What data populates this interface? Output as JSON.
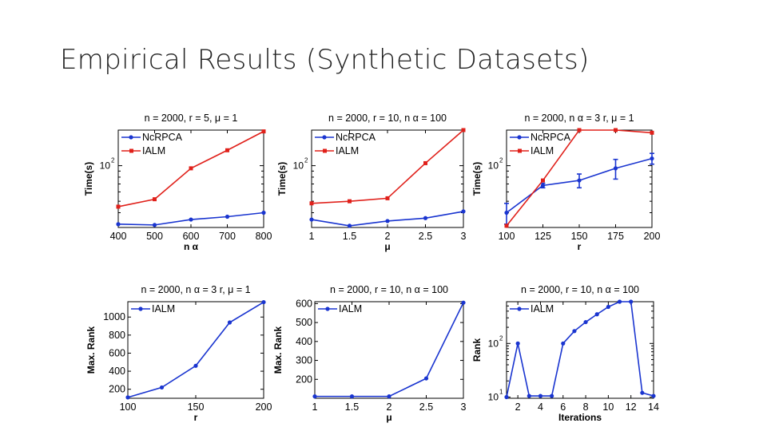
{
  "slide": {
    "title": "Empirical Results (Synthetic Datasets)"
  },
  "colors": {
    "red": "#e0201a",
    "blue": "#1a35d0",
    "axis": "#000000"
  },
  "chart_data": [
    {
      "type": "line",
      "title": "n = 2000, r = 5, μ = 1",
      "xlabel": "n α",
      "ylabel": "Time(s)",
      "yscale": "log",
      "xlim": [
        400,
        800
      ],
      "ylim": [
        30,
        200
      ],
      "xticks": [
        "400",
        "500",
        "600",
        "700",
        "800"
      ],
      "yticks": [
        {
          "base": "10",
          "exp": "2",
          "value": 100
        }
      ],
      "legend_position": "top-left",
      "series": [
        {
          "name": "NcRPCA",
          "color": "blue",
          "x": [
            400,
            500,
            600,
            700,
            800
          ],
          "y": [
            32,
            31.5,
            35,
            37,
            40
          ]
        },
        {
          "name": "IALM",
          "color": "red",
          "x": [
            400,
            500,
            600,
            700,
            800
          ],
          "y": [
            45,
            52,
            95,
            135,
            195
          ]
        }
      ]
    },
    {
      "type": "line",
      "title": "n = 2000, r = 10, n α = 100",
      "xlabel": "μ",
      "ylabel": "Time(s)",
      "yscale": "log",
      "xlim": [
        1,
        3
      ],
      "ylim": [
        30,
        200
      ],
      "xticks": [
        "1",
        "1.5",
        "2",
        "2.5",
        "3"
      ],
      "yticks": [
        {
          "base": "10",
          "exp": "2",
          "value": 100
        }
      ],
      "legend_position": "top-left",
      "series": [
        {
          "name": "NcRPCA",
          "color": "blue",
          "x": [
            1,
            1.5,
            2,
            2.5,
            3
          ],
          "y": [
            35,
            31,
            34,
            36,
            41
          ]
        },
        {
          "name": "IALM",
          "color": "red",
          "x": [
            1,
            1.5,
            2,
            2.5,
            3
          ],
          "y": [
            48,
            50,
            53,
            105,
            200
          ]
        }
      ]
    },
    {
      "type": "line",
      "title": "n = 2000, n α = 3 r, μ = 1",
      "xlabel": "r",
      "ylabel": "Time(s)",
      "yscale": "log",
      "xlim": [
        100,
        200
      ],
      "ylim": [
        30,
        200
      ],
      "xticks": [
        "100",
        "125",
        "150",
        "175",
        "200"
      ],
      "yticks": [
        {
          "base": "10",
          "exp": "2",
          "value": 100
        }
      ],
      "legend_position": "top-left",
      "series": [
        {
          "name": "NcRPCA",
          "color": "blue",
          "x": [
            100,
            125,
            150,
            175,
            200
          ],
          "y": [
            40,
            68,
            75,
            95,
            115
          ],
          "errors": [
            8,
            3,
            10,
            18,
            12
          ]
        },
        {
          "name": "IALM",
          "color": "red",
          "x": [
            100,
            125,
            150,
            175,
            200
          ],
          "y": [
            31,
            75,
            200,
            200,
            190
          ]
        }
      ]
    },
    {
      "type": "line",
      "title": "n = 2000, n α = 3 r, μ = 1",
      "xlabel": "r",
      "ylabel": "Max. Rank",
      "yscale": "linear",
      "xlim": [
        100,
        200
      ],
      "ylim": [
        100,
        1170
      ],
      "xticks": [
        "100",
        "150",
        "200"
      ],
      "yticks": [
        "200",
        "400",
        "600",
        "800",
        "1000"
      ],
      "legend_position": "top-left",
      "series": [
        {
          "name": "IALM",
          "color": "blue",
          "x": [
            100,
            125,
            150,
            175,
            200
          ],
          "y": [
            110,
            220,
            460,
            940,
            1165
          ]
        }
      ]
    },
    {
      "type": "line",
      "title": "n = 2000, r = 10, n α = 100",
      "xlabel": "μ",
      "ylabel": "Max. Rank",
      "yscale": "linear",
      "xlim": [
        1,
        3
      ],
      "ylim": [
        100,
        610
      ],
      "xticks": [
        "1",
        "1.5",
        "2",
        "2.5",
        "3"
      ],
      "yticks": [
        "200",
        "300",
        "400",
        "500",
        "600"
      ],
      "legend_position": "top-left",
      "series": [
        {
          "name": "IALM",
          "color": "blue",
          "x": [
            1,
            1.5,
            2,
            2.5,
            3
          ],
          "y": [
            110,
            110,
            110,
            205,
            605
          ]
        }
      ]
    },
    {
      "type": "line",
      "title": "n = 2000, r = 10, n α = 100",
      "xlabel": "Iterations",
      "ylabel": "Rank",
      "yscale": "log",
      "xlim": [
        1,
        14
      ],
      "ylim": [
        9.5,
        600
      ],
      "xticks": [
        "2",
        "4",
        "6",
        "8",
        "10",
        "12",
        "14"
      ],
      "yticks": [
        {
          "base": "10",
          "exp": "1",
          "value": 10
        },
        {
          "base": "10",
          "exp": "2",
          "value": 100
        }
      ],
      "legend_position": "top-left",
      "series": [
        {
          "name": "IALM",
          "color": "blue",
          "x": [
            1,
            2,
            3,
            4,
            5,
            6,
            7,
            8,
            9,
            10,
            11,
            12,
            13,
            14
          ],
          "y": [
            10,
            100,
            10.5,
            10.5,
            10.5,
            100,
            170,
            250,
            350,
            480,
            600,
            600,
            12,
            10.5
          ]
        }
      ]
    }
  ]
}
